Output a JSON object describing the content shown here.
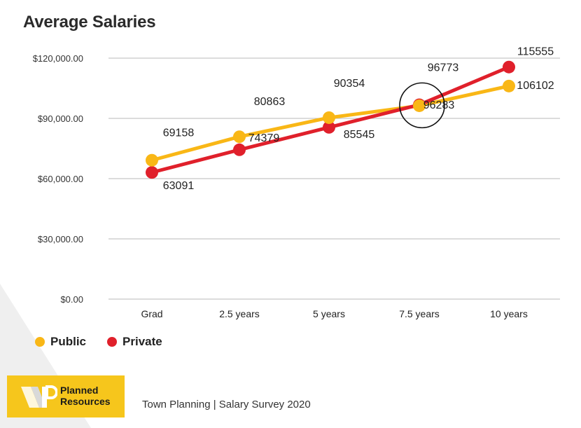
{
  "title": "Average Salaries",
  "footer": "Town Planning | Salary Survey 2020",
  "logo": {
    "line1": "Planned",
    "line2": "Resources"
  },
  "colors": {
    "public": "#f9b716",
    "private": "#e0202b",
    "grid": "#c8c8c8",
    "logo_bg": "#f6c61c"
  },
  "chart_data": {
    "type": "line",
    "title": "Average Salaries",
    "categories": [
      "Grad",
      "2.5 years",
      "5 years",
      "7.5 years",
      "10 years"
    ],
    "series": [
      {
        "name": "Public",
        "values": [
          69158,
          80863,
          90354,
          96283,
          106102
        ]
      },
      {
        "name": "Private",
        "values": [
          63091,
          74379,
          85545,
          96773,
          115555
        ]
      }
    ],
    "yticks": [
      "$0.00",
      "$30,000.00",
      "$60,000.00",
      "$90,000.00",
      "$120,000.00"
    ],
    "ylim": [
      0,
      120000
    ],
    "grid": true,
    "legend": "bottom-left",
    "annotation": "circle highlighting crossover at 7.5 years"
  }
}
